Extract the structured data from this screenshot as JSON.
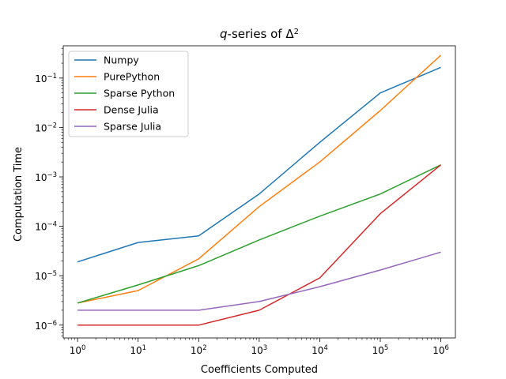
{
  "chart_data": {
    "type": "line",
    "title": {
      "var": "q",
      "rest": "-series of Δ",
      "sup": "2"
    },
    "xlabel": "Coefficients Computed",
    "ylabel": "Computation Time",
    "xscale": "log",
    "yscale": "log",
    "xlim": [
      0.58,
      1740000.0
    ],
    "ylim": [
      5.5e-07,
      0.45
    ],
    "grid": false,
    "legend": "top-left",
    "x": [
      1,
      10,
      100,
      1000,
      10000,
      100000,
      1000000
    ],
    "x_ticks": [
      {
        "base": "10",
        "exp": "0"
      },
      {
        "base": "10",
        "exp": "1"
      },
      {
        "base": "10",
        "exp": "2"
      },
      {
        "base": "10",
        "exp": "3"
      },
      {
        "base": "10",
        "exp": "4"
      },
      {
        "base": "10",
        "exp": "5"
      },
      {
        "base": "10",
        "exp": "6"
      }
    ],
    "y_ticks": [
      {
        "base": "10",
        "exp": "−6"
      },
      {
        "base": "10",
        "exp": "−5"
      },
      {
        "base": "10",
        "exp": "−4"
      },
      {
        "base": "10",
        "exp": "−3"
      },
      {
        "base": "10",
        "exp": "−2"
      },
      {
        "base": "10",
        "exp": "−1"
      }
    ],
    "series": [
      {
        "name": "Numpy",
        "color": "#1f77b4",
        "values": [
          1.9e-05,
          4.7e-05,
          6.4e-05,
          0.00045,
          0.005,
          0.05,
          0.165
        ]
      },
      {
        "name": "PurePython",
        "color": "#ff7f0e",
        "values": [
          2.8e-06,
          5e-06,
          2.2e-05,
          0.00025,
          0.002,
          0.022,
          0.29
        ]
      },
      {
        "name": "Sparse Python",
        "color": "#2ca02c",
        "values": [
          2.8e-06,
          6.5e-06,
          1.6e-05,
          5.3e-05,
          0.00016,
          0.00045,
          0.00175
        ]
      },
      {
        "name": "Dense Julia",
        "color": "#d62728",
        "values": [
          1e-06,
          1e-06,
          1e-06,
          2e-06,
          9e-06,
          0.00018,
          0.00175
        ]
      },
      {
        "name": "Sparse Julia",
        "color": "#9467bd",
        "values": [
          2e-06,
          2e-06,
          2e-06,
          3e-06,
          6e-06,
          1.3e-05,
          3e-05
        ]
      }
    ]
  }
}
